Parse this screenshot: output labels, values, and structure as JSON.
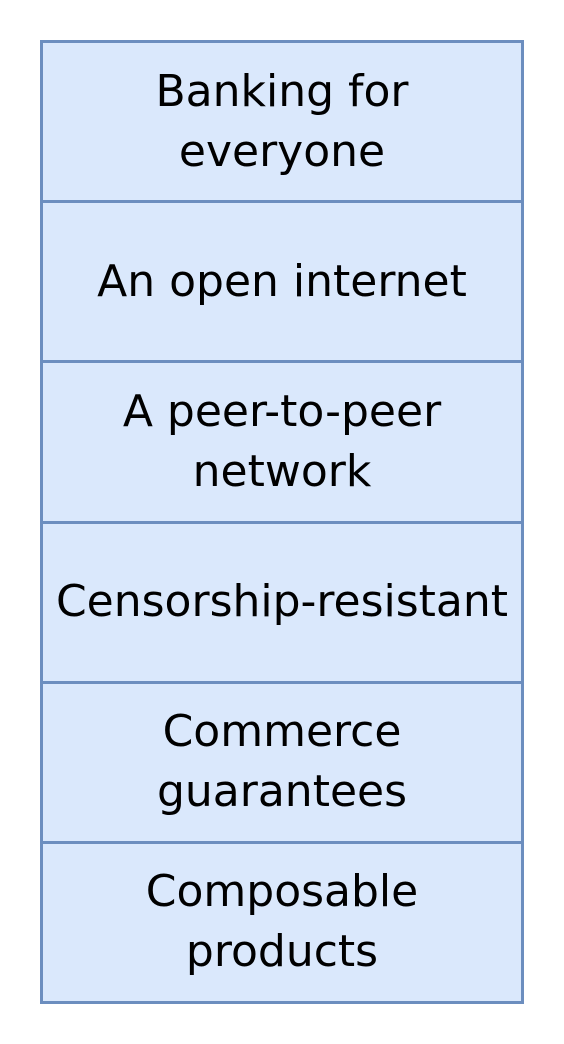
{
  "colors": {
    "fill": "#dae8fc",
    "stroke": "#6c8ebf",
    "text": "#000000",
    "background": "#ffffff"
  },
  "blocks": [
    {
      "label": "Banking for everyone"
    },
    {
      "label": "An open internet"
    },
    {
      "label": "A peer-to-peer\nnetwork"
    },
    {
      "label": "Censorship-resistant"
    },
    {
      "label": "Commerce\nguarantees"
    },
    {
      "label": "Composable\nproducts"
    }
  ]
}
